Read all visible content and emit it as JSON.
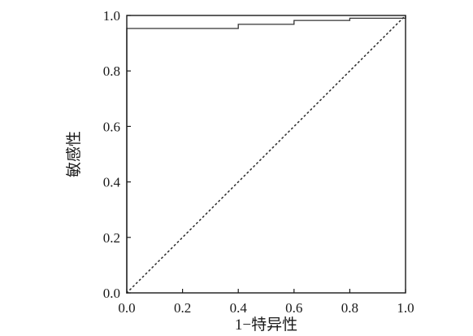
{
  "chart_data": {
    "type": "line",
    "title": "",
    "xlabel": "1−特异性",
    "ylabel": "敏感性",
    "xlim": [
      0.0,
      1.0
    ],
    "ylim": [
      0.0,
      1.0
    ],
    "xticks": [
      "0.0",
      "0.2",
      "0.4",
      "0.6",
      "0.8",
      "1.0"
    ],
    "yticks": [
      "0.0",
      "0.2",
      "0.4",
      "0.6",
      "0.8",
      "1.0"
    ],
    "grid": false,
    "legend": "none",
    "series": [
      {
        "style": "solid-step",
        "color": "#333333",
        "x": [
          0.0,
          0.0,
          0.4,
          0.4,
          0.6,
          0.6,
          0.8,
          0.8,
          1.0,
          1.0
        ],
        "y": [
          0.0,
          0.953,
          0.953,
          0.968,
          0.968,
          0.982,
          0.982,
          0.99,
          0.99,
          1.0
        ]
      },
      {
        "style": "dotted",
        "color": "#333333",
        "x": [
          0.0,
          1.0
        ],
        "y": [
          0.0,
          1.0
        ]
      }
    ]
  }
}
